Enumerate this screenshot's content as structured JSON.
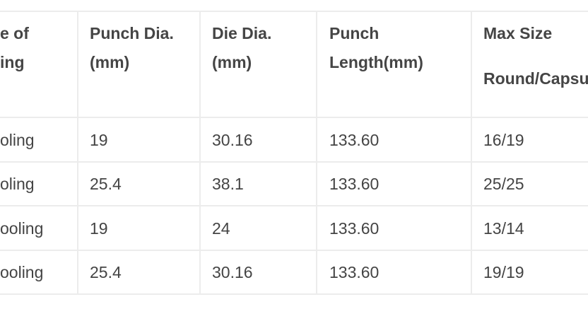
{
  "table": {
    "headers": [
      [
        "e of",
        "ing"
      ],
      [
        "Punch Dia.",
        "(mm)"
      ],
      [
        "Die Dia.",
        "(mm)"
      ],
      [
        "Punch",
        "Length(mm)"
      ],
      [
        "Max Size",
        "Round/Capsu"
      ]
    ],
    "rows": [
      [
        "oling",
        "19",
        "30.16",
        "133.60",
        "16/19"
      ],
      [
        "oling",
        "25.4",
        "38.1",
        "133.60",
        "25/25"
      ],
      [
        "ooling",
        "19",
        "24",
        "133.60",
        "13/14"
      ],
      [
        "ooling",
        "25.4",
        "30.16",
        "133.60",
        "19/19"
      ]
    ]
  }
}
